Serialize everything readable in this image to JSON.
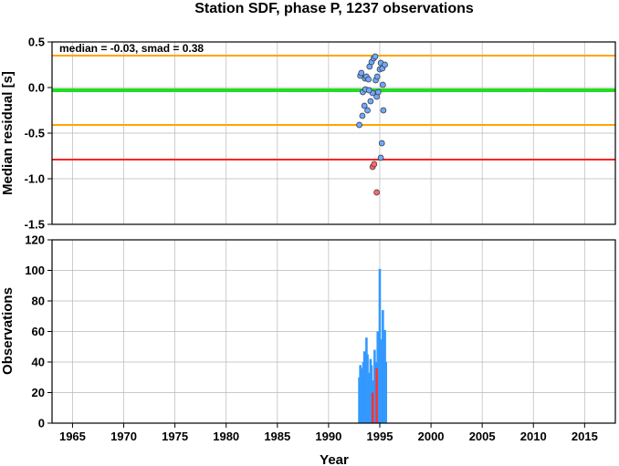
{
  "title": "Station SDF, phase P, 1237 observations",
  "chart_data": [
    {
      "type": "scatter",
      "ylabel": "Median residual [s]",
      "annotation": "median = -0.03, smad = 0.38",
      "xlim": [
        1963,
        2018
      ],
      "ylim": [
        -1.5,
        0.5
      ],
      "yticks": [
        "-1.5",
        "-1.0",
        "-0.5",
        "0.0",
        "0.5"
      ],
      "yticks_values": [
        -1.5,
        -1.0,
        -0.5,
        0.0,
        0.5
      ],
      "grid": true,
      "reference_lines": [
        {
          "y": 0.35,
          "color": "#ffa500"
        },
        {
          "y": -0.03,
          "color": "#22dd22"
        },
        {
          "y": -0.41,
          "color": "#ffa500"
        },
        {
          "y": -0.79,
          "color": "#ff2222"
        }
      ],
      "series": [
        {
          "color": "#6fa8ff",
          "points": [
            [
              1993.0,
              -0.41
            ],
            [
              1993.1,
              0.13
            ],
            [
              1993.2,
              0.16
            ],
            [
              1993.3,
              -0.31
            ],
            [
              1993.35,
              -0.05
            ],
            [
              1993.5,
              -0.2
            ],
            [
              1993.55,
              0.1
            ],
            [
              1993.6,
              -0.02
            ],
            [
              1993.7,
              0.12
            ],
            [
              1993.8,
              -0.25
            ],
            [
              1993.9,
              0.09
            ],
            [
              1994.0,
              0.23
            ],
            [
              1994.1,
              -0.15
            ],
            [
              1994.2,
              0.28
            ],
            [
              1994.3,
              -0.06
            ],
            [
              1994.4,
              0.32
            ],
            [
              1994.55,
              0.34
            ],
            [
              1994.6,
              0.08
            ],
            [
              1994.7,
              -0.1
            ],
            [
              1994.75,
              0.12
            ],
            [
              1994.85,
              -0.05
            ],
            [
              1995.0,
              0.2
            ],
            [
              1995.1,
              0.27
            ],
            [
              1995.2,
              -0.61
            ],
            [
              1995.25,
              0.21
            ],
            [
              1995.3,
              0.03
            ],
            [
              1995.35,
              -0.25
            ],
            [
              1995.5,
              0.25
            ],
            [
              1995.1,
              -0.77
            ],
            [
              1993.95,
              -0.03
            ]
          ]
        },
        {
          "color": "#ff6a6a",
          "points": [
            [
              1994.3,
              -0.87
            ],
            [
              1994.45,
              -0.84
            ],
            [
              1994.7,
              -1.15
            ]
          ]
        }
      ]
    },
    {
      "type": "bar",
      "ylabel": "Observations",
      "xlabel": "Year",
      "xlim": [
        1963,
        2018
      ],
      "ylim": [
        0,
        120
      ],
      "xticks": [
        "1965",
        "1970",
        "1975",
        "1980",
        "1985",
        "1990",
        "1995",
        "2000",
        "2005",
        "2010",
        "2015"
      ],
      "xticks_values": [
        1965,
        1970,
        1975,
        1980,
        1985,
        1990,
        1995,
        2000,
        2005,
        2010,
        2015
      ],
      "yticks": [
        "0",
        "20",
        "40",
        "60",
        "80",
        "100",
        "120"
      ],
      "yticks_values": [
        0,
        20,
        40,
        60,
        80,
        100,
        120
      ],
      "grid": true,
      "series": [
        {
          "color": "#3399ff",
          "x": [
            1993.0,
            1993.1,
            1993.2,
            1993.3,
            1993.4,
            1993.5,
            1993.6,
            1993.7,
            1993.8,
            1993.9,
            1994.0,
            1994.1,
            1994.2,
            1994.3,
            1994.4,
            1994.5,
            1994.6,
            1994.7,
            1994.8,
            1994.9,
            1995.0,
            1995.1,
            1995.2,
            1995.3,
            1995.4,
            1995.5,
            1995.6
          ],
          "values": [
            30,
            38,
            25,
            36,
            40,
            47,
            35,
            56,
            45,
            30,
            33,
            42,
            38,
            28,
            25,
            48,
            35,
            40,
            60,
            35,
            101,
            55,
            45,
            74,
            50,
            61,
            40
          ]
        },
        {
          "color": "#ff3333",
          "x": [
            1994.3,
            1994.7
          ],
          "values": [
            20,
            36
          ]
        }
      ]
    }
  ]
}
